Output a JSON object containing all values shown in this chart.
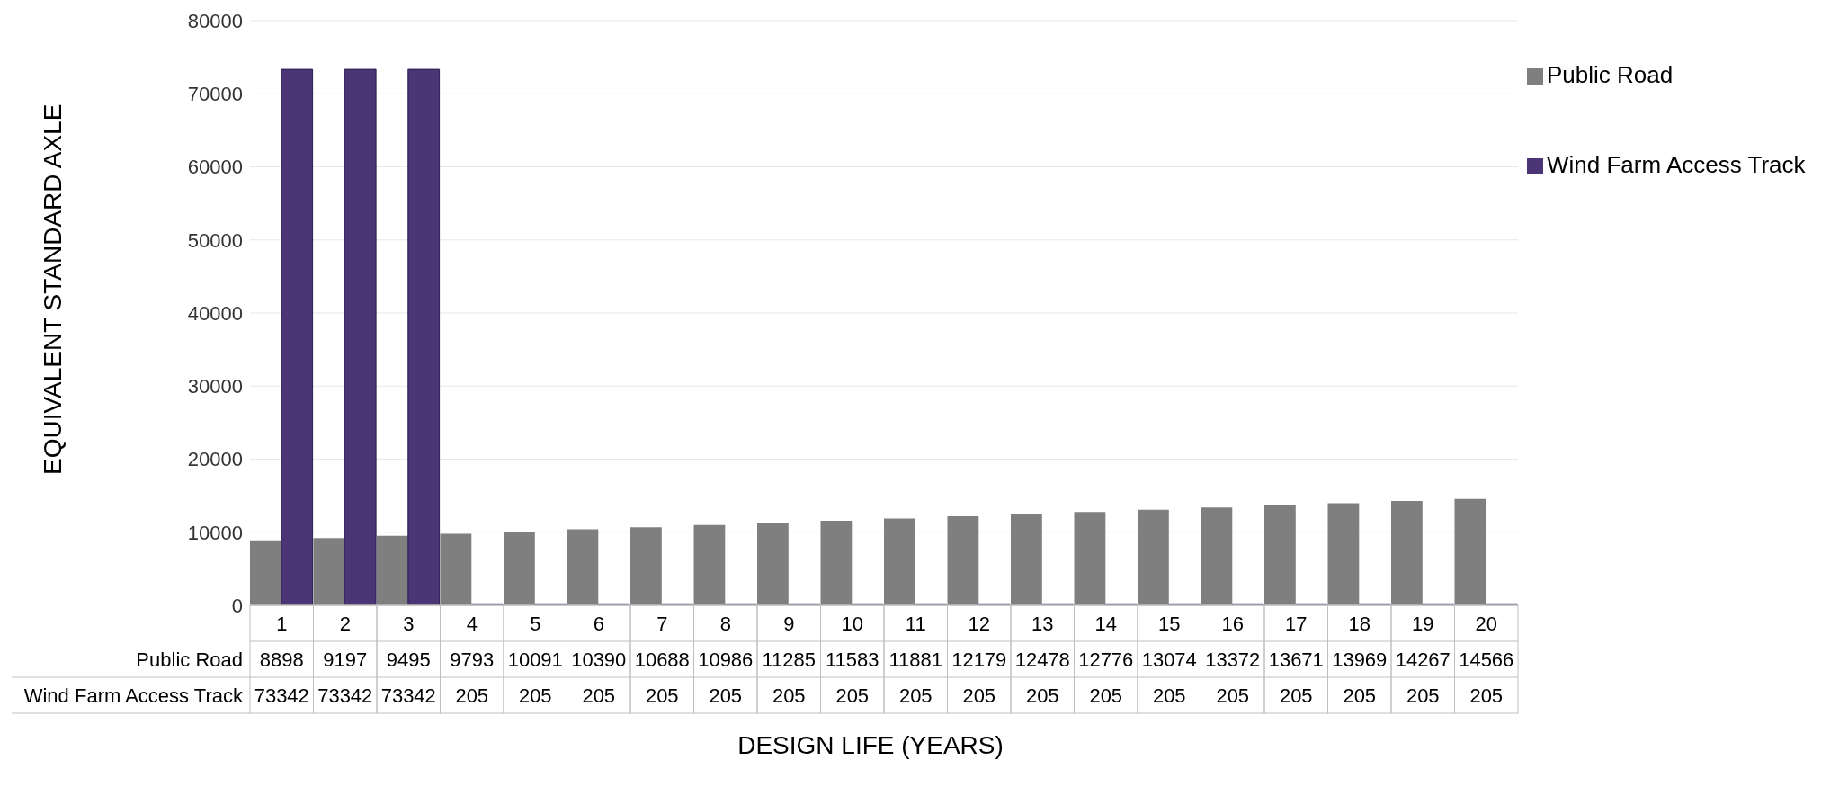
{
  "chart_data": {
    "type": "bar",
    "xlabel": "DESIGN LIFE (YEARS)",
    "ylabel": "EQUIVALENT STANDARD AXLE",
    "categories": [
      "1",
      "2",
      "3",
      "4",
      "5",
      "6",
      "7",
      "8",
      "9",
      "10",
      "11",
      "12",
      "13",
      "14",
      "15",
      "16",
      "17",
      "18",
      "19",
      "20"
    ],
    "series": [
      {
        "name": "Public Road",
        "color": "#7f7f7f",
        "values": [
          8898,
          9197,
          9495,
          9793,
          10091,
          10390,
          10688,
          10986,
          11285,
          11583,
          11881,
          12179,
          12478,
          12776,
          13074,
          13372,
          13671,
          13969,
          14267,
          14566
        ]
      },
      {
        "name": "Wind Farm Access Track",
        "color": "#4b3574",
        "values": [
          73342,
          73342,
          73342,
          205,
          205,
          205,
          205,
          205,
          205,
          205,
          205,
          205,
          205,
          205,
          205,
          205,
          205,
          205,
          205,
          205
        ]
      }
    ],
    "ylim": [
      0,
      80000
    ],
    "yticks": [
      0,
      10000,
      20000,
      30000,
      40000,
      50000,
      60000,
      70000,
      80000
    ],
    "grid": "y",
    "legend": "top right",
    "data_labels": true
  }
}
